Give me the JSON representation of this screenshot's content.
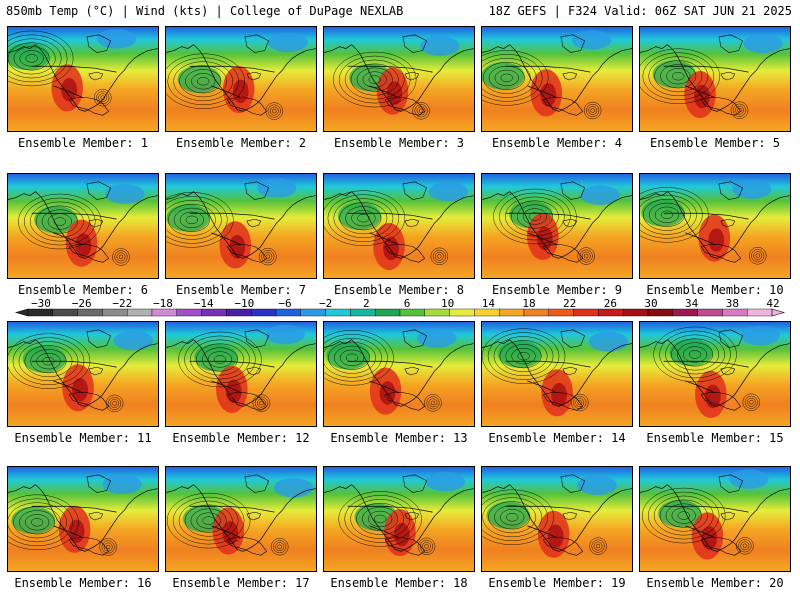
{
  "header": {
    "left": "850mb Temp (°C) | Wind (kts) | College of DuPage NEXLAB",
    "right": "18Z GEFS | F324 Valid: 06Z SAT JUN 21 2025"
  },
  "members": [
    {
      "label": "Ensemble Member: 1"
    },
    {
      "label": "Ensemble Member: 2"
    },
    {
      "label": "Ensemble Member: 3"
    },
    {
      "label": "Ensemble Member: 4"
    },
    {
      "label": "Ensemble Member: 5"
    },
    {
      "label": "Ensemble Member: 6"
    },
    {
      "label": "Ensemble Member: 7"
    },
    {
      "label": "Ensemble Member: 8"
    },
    {
      "label": "Ensemble Member: 9"
    },
    {
      "label": "Ensemble Member: 10"
    },
    {
      "label": "Ensemble Member: 11"
    },
    {
      "label": "Ensemble Member: 12"
    },
    {
      "label": "Ensemble Member: 13"
    },
    {
      "label": "Ensemble Member: 14"
    },
    {
      "label": "Ensemble Member: 15"
    },
    {
      "label": "Ensemble Member: 16"
    },
    {
      "label": "Ensemble Member: 17"
    },
    {
      "label": "Ensemble Member: 18"
    },
    {
      "label": "Ensemble Member: 19"
    },
    {
      "label": "Ensemble Member: 20"
    }
  ],
  "colorbar": {
    "ticks": [
      "−30",
      "−26",
      "−22",
      "−18",
      "−14",
      "−10",
      "−6",
      "−2",
      "2",
      "6",
      "10",
      "14",
      "18",
      "22",
      "26",
      "30",
      "34",
      "38",
      "42"
    ],
    "colors": [
      "#2a2a2a",
      "#4a4a4a",
      "#6a6a6a",
      "#8c8c8c",
      "#b0b0b0",
      "#d38ad6",
      "#a44fc9",
      "#7a2fb8",
      "#4a1fa8",
      "#2a32c8",
      "#1f63e0",
      "#2a9be6",
      "#20c8dc",
      "#14b89a",
      "#1ea652",
      "#55c23a",
      "#a5dc3a",
      "#e6ec3a",
      "#f7d12e",
      "#f5a623",
      "#f08020",
      "#ec5a1c",
      "#e0301c",
      "#c81818",
      "#a80e12",
      "#8a0a10",
      "#a01650",
      "#c04a90",
      "#d87ac0",
      "#eeb4de"
    ]
  }
}
